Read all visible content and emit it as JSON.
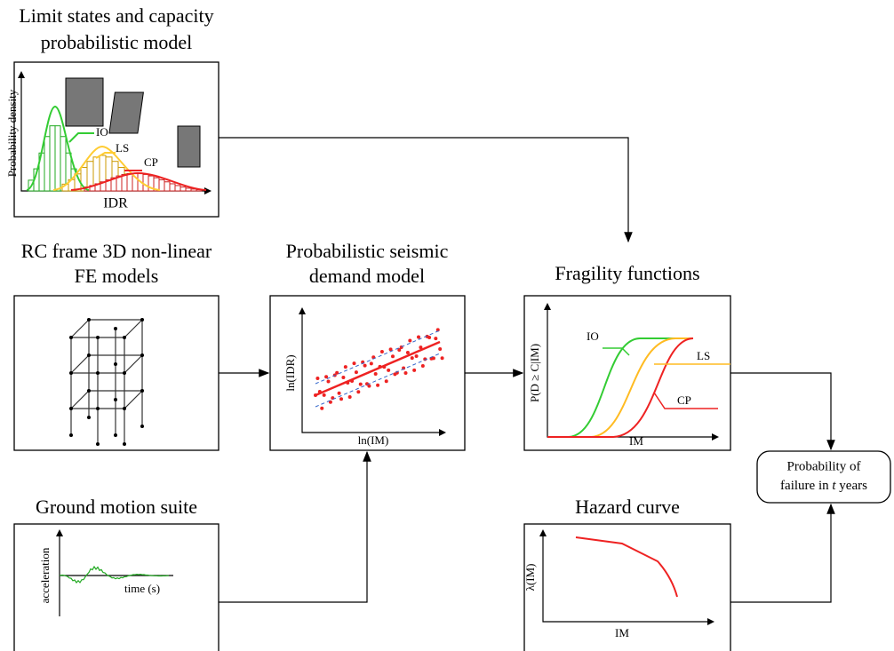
{
  "nodes": [
    {
      "title": [
        "Limit states and capacity",
        "probabilistic model"
      ],
      "y_label": "Probability density",
      "x_label": "IDR",
      "curves": [
        "IO",
        "LS",
        "CP"
      ]
    },
    {
      "title": [
        "RC frame 3D non-linear",
        "FE models"
      ]
    },
    {
      "title": [
        "Probabilistic seismic",
        "demand model"
      ],
      "y_label": "ln(IDR)",
      "x_label": "ln(IM)"
    },
    {
      "title": [
        "Fragility functions"
      ],
      "y_label": "P(D ≥ C|IM)",
      "x_label": "IM",
      "curves": [
        "IO",
        "LS",
        "CP"
      ]
    },
    {
      "title": [
        "Ground motion suite"
      ],
      "y_label": "acceleration",
      "x_label": "time (s)"
    },
    {
      "title": [
        "Hazard curve"
      ],
      "y_label": "λ(IM)",
      "x_label": "IM"
    },
    {
      "title": [
        "Probability of",
        "failure in ",
        "t",
        " years"
      ]
    }
  ]
}
